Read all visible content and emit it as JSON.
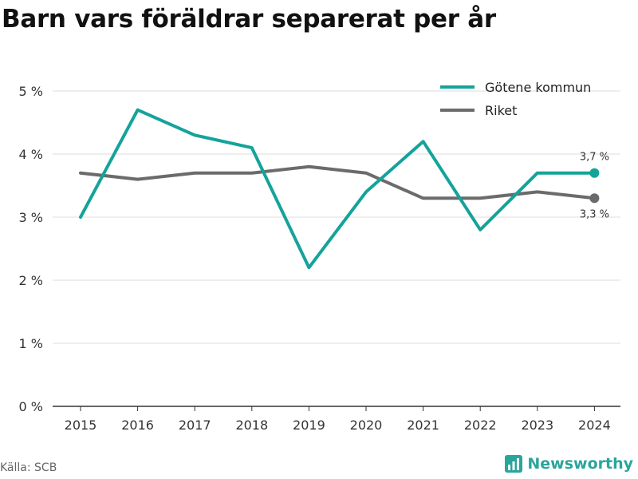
{
  "title": "Barn vars föräldrar separerat per år",
  "source": "Källa: SCB",
  "brand": {
    "name": "Newsworthy",
    "icon": "newsworthy-logo-icon"
  },
  "colors": {
    "gotene": "#14a39a",
    "riket": "#6b6b6b",
    "grid": "#dddddd",
    "axis": "#333333"
  },
  "chart_data": {
    "type": "line",
    "title": "Barn vars föräldrar separerat per år",
    "xlabel": "",
    "ylabel": "",
    "x": [
      "2015",
      "2016",
      "2017",
      "2018",
      "2019",
      "2020",
      "2021",
      "2022",
      "2023",
      "2024"
    ],
    "ylim": [
      0,
      5
    ],
    "yticks": [
      0,
      1,
      2,
      3,
      4,
      5
    ],
    "ytick_labels": [
      "0 %",
      "1 %",
      "2 %",
      "3 %",
      "4 %",
      "5 %"
    ],
    "grid": true,
    "legend_position": "top-right",
    "series": [
      {
        "name": "Götene kommun",
        "color": "#14a39a",
        "values": [
          3.0,
          4.7,
          4.3,
          4.1,
          2.2,
          3.4,
          4.2,
          2.8,
          3.7,
          3.7
        ],
        "end_label": "3,7 %"
      },
      {
        "name": "Riket",
        "color": "#6b6b6b",
        "values": [
          3.7,
          3.6,
          3.7,
          3.7,
          3.8,
          3.7,
          3.3,
          3.3,
          3.4,
          3.3
        ],
        "end_label": "3,3 %"
      }
    ]
  }
}
